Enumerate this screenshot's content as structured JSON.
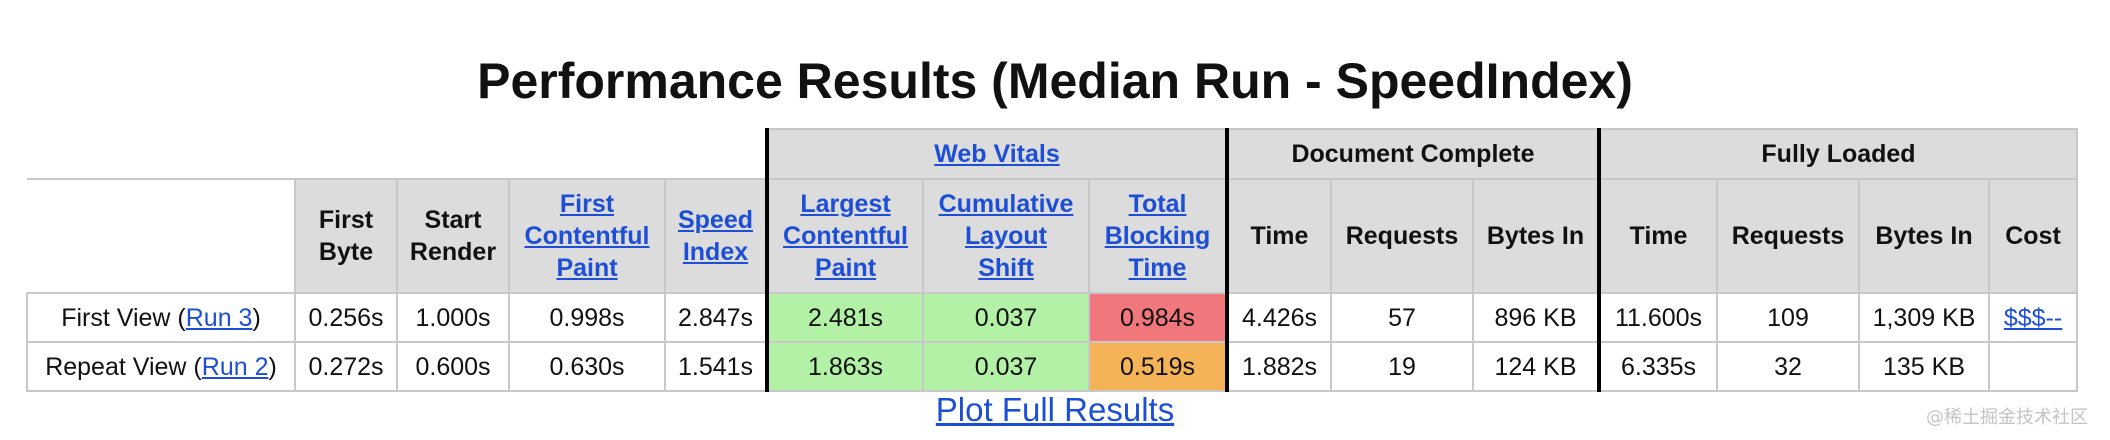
{
  "page": {
    "title": "Performance Results (Median Run - SpeedIndex)",
    "plot_link": "Plot Full Results",
    "watermark": "@稀土掘金技术社区"
  },
  "groups": {
    "web_vitals": "Web Vitals",
    "document_complete": "Document Complete",
    "fully_loaded": "Fully Loaded"
  },
  "headers": {
    "first_byte": [
      "First",
      "Byte"
    ],
    "start_render": [
      "Start",
      "Render"
    ],
    "first_contentful_paint": [
      "First",
      "Contentful",
      "Paint"
    ],
    "speed_index": [
      "Speed",
      "Index"
    ],
    "largest_contentful_paint": [
      "Largest",
      "Contentful",
      "Paint"
    ],
    "cumulative_layout_shift": [
      "Cumulative",
      "Layout",
      "Shift"
    ],
    "total_blocking_time": [
      "Total",
      "Blocking",
      "Time"
    ],
    "doc_time": "Time",
    "doc_requests": "Requests",
    "doc_bytes_in": "Bytes In",
    "full_time": "Time",
    "full_requests": "Requests",
    "full_bytes_in": "Bytes In",
    "cost": "Cost"
  },
  "rows": [
    {
      "label_prefix": "First View (",
      "run_link": "Run 3",
      "label_suffix": ")",
      "first_byte": "0.256s",
      "start_render": "1.000s",
      "first_contentful_paint": "0.998s",
      "speed_index": "2.847s",
      "largest_contentful_paint": "2.481s",
      "cumulative_layout_shift": "0.037",
      "total_blocking_time": "0.984s",
      "doc_time": "4.426s",
      "doc_requests": "57",
      "doc_bytes_in": "896 KB",
      "full_time": "11.600s",
      "full_requests": "109",
      "full_bytes_in": "1,309 KB",
      "cost": "$$$--"
    },
    {
      "label_prefix": "Repeat View (",
      "run_link": "Run 2",
      "label_suffix": ")",
      "first_byte": "0.272s",
      "start_render": "0.600s",
      "first_contentful_paint": "0.630s",
      "speed_index": "1.541s",
      "largest_contentful_paint": "1.863s",
      "cumulative_layout_shift": "0.037",
      "total_blocking_time": "0.519s",
      "doc_time": "1.882s",
      "doc_requests": "19",
      "doc_bytes_in": "124 KB",
      "full_time": "6.335s",
      "full_requests": "32",
      "full_bytes_in": "135 KB",
      "cost": ""
    }
  ],
  "colors": {
    "good": "#b3f2a6",
    "poor": "#f0777c",
    "needs_improvement": "#f5b357",
    "link": "#1d4fd6",
    "header_bg": "#dcdcdc"
  }
}
